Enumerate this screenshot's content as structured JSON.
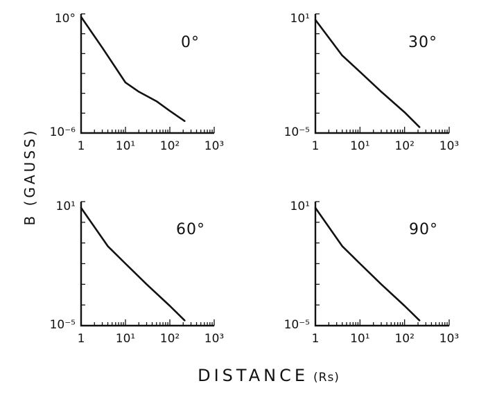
{
  "chart_data": [
    {
      "type": "line",
      "annotation": "0°",
      "x_scale": "log",
      "y_scale": "log",
      "xlim": [
        1,
        1000
      ],
      "ylim": [
        1e-06,
        1
      ],
      "x_tick_labels": [
        "1",
        "10¹",
        "10²",
        "10³"
      ],
      "y_tick_labels": [
        "10°",
        "10⁻⁶"
      ],
      "series": [
        {
          "x": [
            1,
            3,
            10,
            20,
            50,
            100,
            215
          ],
          "y": [
            0.7,
            0.02,
            0.00035,
            0.00012,
            4e-05,
            1.3e-05,
            4e-06
          ]
        }
      ]
    },
    {
      "type": "line",
      "annotation": "30°",
      "x_scale": "log",
      "y_scale": "log",
      "xlim": [
        1,
        1000
      ],
      "ylim": [
        1e-05,
        10
      ],
      "x_tick_labels": [
        "1",
        "10¹",
        "10²",
        "10³"
      ],
      "y_tick_labels": [
        "10¹",
        "10⁻⁵"
      ],
      "series": [
        {
          "x": [
            1,
            4,
            10,
            30,
            100,
            215
          ],
          "y": [
            5,
            0.08,
            0.012,
            0.0012,
            0.00011,
            2e-05
          ]
        }
      ]
    },
    {
      "type": "line",
      "annotation": "60°",
      "x_scale": "log",
      "y_scale": "log",
      "xlim": [
        1,
        1000
      ],
      "ylim": [
        1e-05,
        10
      ],
      "x_tick_labels": [
        "1",
        "10¹",
        "10²",
        "10³"
      ],
      "y_tick_labels": [
        "10¹",
        "10⁻⁵"
      ],
      "series": [
        {
          "x": [
            1,
            4,
            10,
            30,
            100,
            215
          ],
          "y": [
            5,
            0.07,
            0.01,
            0.001,
            9e-05,
            1.8e-05
          ]
        }
      ]
    },
    {
      "type": "line",
      "annotation": "90°",
      "x_scale": "log",
      "y_scale": "log",
      "xlim": [
        1,
        1000
      ],
      "ylim": [
        1e-05,
        10
      ],
      "x_tick_labels": [
        "1",
        "10¹",
        "10²",
        "10³"
      ],
      "y_tick_labels": [
        "10¹",
        "10⁻⁵"
      ],
      "series": [
        {
          "x": [
            1,
            4,
            10,
            30,
            100,
            215
          ],
          "y": [
            5,
            0.07,
            0.01,
            0.001,
            9e-05,
            1.8e-05
          ]
        }
      ]
    }
  ],
  "ylabel": "B (GAUSS)",
  "xlabel": "DISTANCE",
  "xlabel_unit": "(Rs)"
}
